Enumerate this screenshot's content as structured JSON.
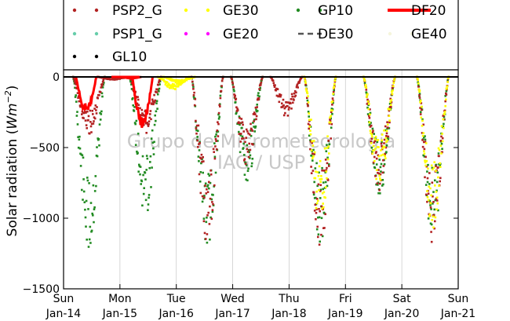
{
  "chart_data": {
    "type": "scatter",
    "ylabel": "Solar radiation (W m^-2)",
    "ylabel_parts": {
      "text": "Solar radiation (",
      "unit_base": "Wm",
      "unit_exp": "−2",
      "close": ")"
    },
    "ylim": [
      -1500,
      50
    ],
    "yticks": [
      {
        "value": 0,
        "label": "0"
      },
      {
        "value": -500,
        "label": "−500"
      },
      {
        "value": -1000,
        "label": "−1000"
      },
      {
        "value": -1500,
        "label": "−1500"
      }
    ],
    "xlim": [
      0,
      7
    ],
    "xticks": [
      {
        "value": 0,
        "day": "Sun",
        "date": "Jan-14"
      },
      {
        "value": 1,
        "day": "Mon",
        "date": "Jan-15"
      },
      {
        "value": 2,
        "day": "Tue",
        "date": "Jan-16"
      },
      {
        "value": 3,
        "day": "Wed",
        "date": "Jan-17"
      },
      {
        "value": 4,
        "day": "Thu",
        "date": "Jan-18"
      },
      {
        "value": 5,
        "day": "Fri",
        "date": "Jan-19"
      },
      {
        "value": 6,
        "day": "Sat",
        "date": "Jan-20"
      },
      {
        "value": 7,
        "day": "Sun",
        "date": "Jan-21"
      }
    ],
    "grid": true,
    "legend_position": "top",
    "watermark": [
      "Grupo de Micrometeorologia",
      "IAG / USP"
    ],
    "series": [
      {
        "name": "PSP2_G",
        "color": "#b22222",
        "marker": "dot"
      },
      {
        "name": "GE30",
        "color": "#ffff00",
        "marker": "dot"
      },
      {
        "name": "GP10",
        "color": "#228b22",
        "marker": "dot"
      },
      {
        "name": "DF20",
        "color": "#ff0000",
        "marker": "line"
      },
      {
        "name": "PSP1_G",
        "color": "#66cdaa",
        "marker": "dot"
      },
      {
        "name": "GE20",
        "color": "#ff00ff",
        "marker": "dot"
      },
      {
        "name": "DE30",
        "color": "#555555",
        "marker": "dash"
      },
      {
        "name": "GE40",
        "color": "#f5f5dc",
        "marker": "dot"
      },
      {
        "name": "GL10",
        "color": "#000000",
        "marker": "dot"
      }
    ],
    "daily_min": [
      {
        "series": "PSP2_G",
        "x": [
          0.45,
          0.88,
          1.45,
          2.55,
          3.25,
          3.95,
          4.55,
          5.6,
          6.55
        ],
        "y": [
          -420,
          -20,
          -400,
          -1180,
          -650,
          -280,
          -1230,
          -820,
          -1180
        ]
      },
      {
        "series": "GP10",
        "x": [
          0.45,
          1.45,
          2.55,
          3.25,
          4.55,
          5.6,
          6.55
        ],
        "y": [
          -1280,
          -1000,
          -1220,
          -750,
          -1200,
          -850,
          -1160
        ]
      },
      {
        "series": "GE30",
        "x": [
          1.95,
          2.05,
          4.55,
          5.6,
          6.55
        ],
        "y": [
          -90,
          -40,
          -1050,
          -780,
          -1100
        ]
      },
      {
        "series": "DF20",
        "x": [
          0.4,
          1.2,
          1.4
        ],
        "y": [
          -260,
          -10,
          -380
        ]
      }
    ]
  }
}
